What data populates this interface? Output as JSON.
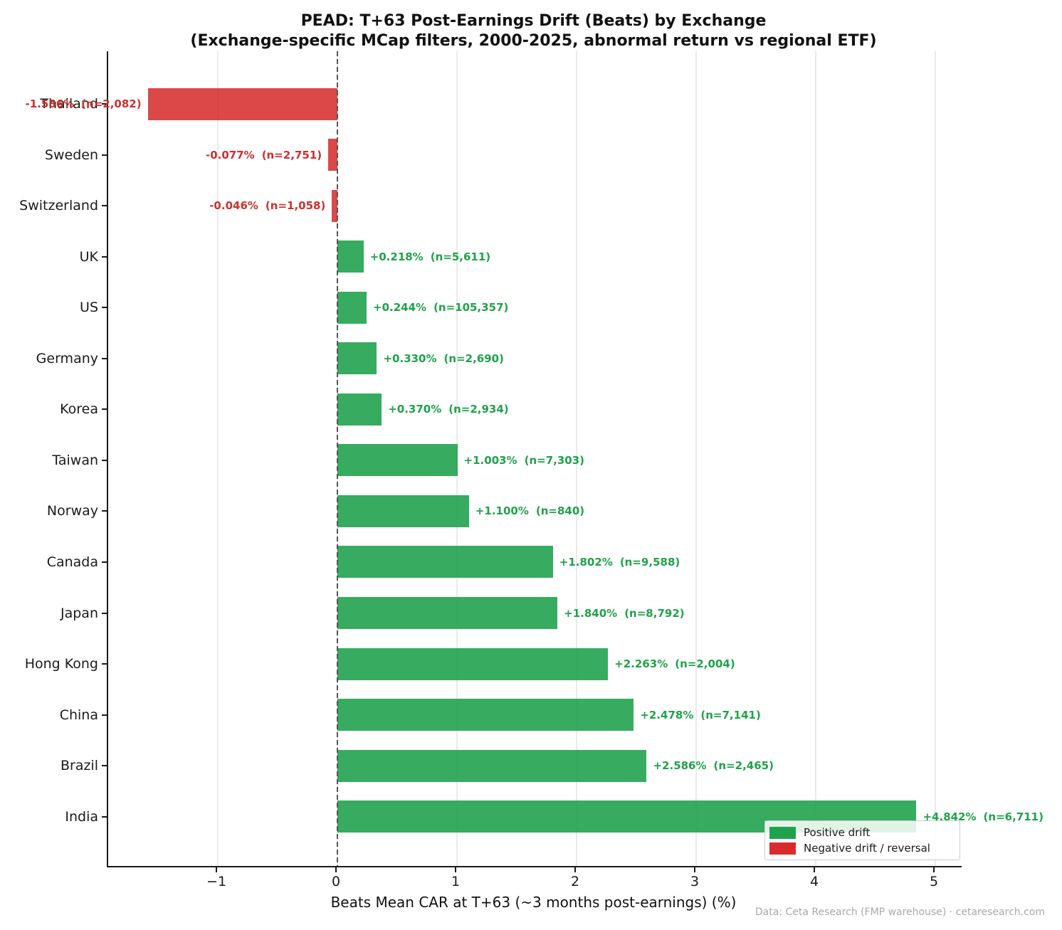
{
  "title": {
    "line1": "PEAD: T+63 Post-Earnings Drift (Beats) by Exchange",
    "line2": "(Exchange-specific MCap filters, 2000-2025, abnormal return vs regional ETF)"
  },
  "footer": "Data: Ceta Research (FMP warehouse) · cetaresearch.com",
  "chart_data": {
    "type": "bar",
    "orientation": "horizontal",
    "title": "PEAD: T+63 Post-Earnings Drift (Beats) by Exchange (Exchange-specific MCap filters, 2000-2025, abnormal return vs regional ETF)",
    "xlabel": "Beats Mean CAR at T+63 (~3 months post-earnings) (%)",
    "ylabel": "",
    "xlim": [
      -1.917,
      5.22
    ],
    "grid": true,
    "zero_line": 0,
    "x_ticks": [
      -1,
      0,
      1,
      2,
      3,
      4,
      5
    ],
    "x_tick_labels": [
      "−1",
      "0",
      "1",
      "2",
      "3",
      "4",
      "5"
    ],
    "categories": [
      "Thailand",
      "Sweden",
      "Switzerland",
      "UK",
      "US",
      "Germany",
      "Korea",
      "Taiwan",
      "Norway",
      "Canada",
      "Japan",
      "Hong Kong",
      "China",
      "Brazil",
      "India"
    ],
    "values": [
      -1.586,
      -0.077,
      -0.046,
      0.218,
      0.244,
      0.33,
      0.37,
      1.003,
      1.1,
      1.802,
      1.84,
      2.263,
      2.478,
      2.586,
      4.842
    ],
    "n_counts": [
      2082,
      2751,
      1058,
      5611,
      105357,
      2690,
      2934,
      7303,
      840,
      9588,
      8792,
      2004,
      7141,
      2465,
      6711
    ],
    "pct_labels": [
      "-1.586%",
      "-0.077%",
      "-0.046%",
      "+0.218%",
      "+0.244%",
      "+0.330%",
      "+0.370%",
      "+1.003%",
      "+1.100%",
      "+1.802%",
      "+1.840%",
      "+2.263%",
      "+2.478%",
      "+2.586%",
      "+4.842%"
    ],
    "n_labels": [
      "(n=2,082)",
      "(n=2,751)",
      "(n=1,058)",
      "(n=5,611)",
      "(n=105,357)",
      "(n=2,690)",
      "(n=2,934)",
      "(n=7,303)",
      "(n=840)",
      "(n=9,588)",
      "(n=8,792)",
      "(n=2,004)",
      "(n=7,141)",
      "(n=2,465)",
      "(n=6,711)"
    ],
    "legend": {
      "position": "lower right",
      "items": [
        {
          "label": "Positive drift",
          "color": "#1fa24e"
        },
        {
          "label": "Negative drift / reversal",
          "color": "#d92b2b"
        }
      ]
    },
    "colors": {
      "positive_bar": "rgba(33,162,78,0.9)",
      "negative_bar": "rgba(214,39,40,0.85)",
      "positive_text": "#1fa24a",
      "negative_text": "#cf2f2f",
      "gridline": "#eaeaea",
      "zero_line": "#555555"
    }
  }
}
